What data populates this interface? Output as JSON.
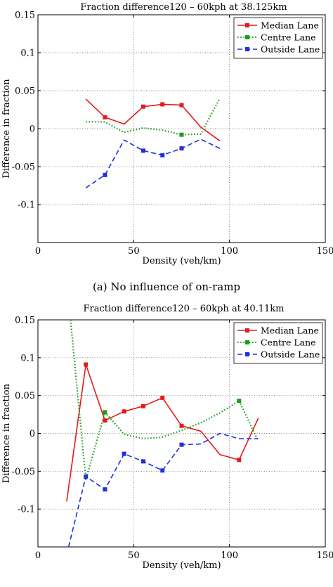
{
  "caption_a": "(a) No influence of on-ramp",
  "chart_data": [
    {
      "type": "line",
      "title": "Fraction difference120 – 60kph at 38.125km",
      "xlabel": "Density (veh/km)",
      "ylabel": "Difference in fraction",
      "xlim": [
        0,
        150
      ],
      "ylim": [
        -0.15,
        0.15
      ],
      "xticks": [
        0,
        50,
        100,
        150
      ],
      "xtick_labels": [
        "0",
        "50",
        "100",
        "150"
      ],
      "yticks": [
        -0.1,
        -0.05,
        0,
        0.05,
        0.1,
        0.15
      ],
      "ytick_labels": [
        "-0.1",
        "-0.05",
        "0",
        "0.05",
        "0.1",
        "0.15"
      ],
      "grid": true,
      "legend_position": "top-right",
      "series": [
        {
          "name": "Median Lane",
          "color": "#e41a1c",
          "style": "solid",
          "x": [
            25,
            35,
            45,
            55,
            65,
            75,
            85,
            95
          ],
          "y": [
            0.039,
            0.015,
            0.006,
            0.029,
            0.032,
            0.031,
            0.002,
            -0.016
          ],
          "markers": [
            [
              35,
              0.015
            ],
            [
              55,
              0.029
            ],
            [
              65,
              0.032
            ],
            [
              75,
              0.031
            ]
          ]
        },
        {
          "name": "Centre Lane",
          "color": "#1a9e1a",
          "style": "dotted",
          "x": [
            25,
            35,
            45,
            55,
            65,
            75,
            85,
            95
          ],
          "y": [
            0.009,
            0.009,
            -0.005,
            0.001,
            -0.002,
            -0.008,
            -0.007,
            0.04
          ],
          "markers": [
            [
              75,
              -0.008
            ]
          ]
        },
        {
          "name": "Outside Lane",
          "color": "#1f2fe0",
          "style": "dashed",
          "x": [
            25,
            35,
            45,
            55,
            65,
            75,
            85,
            95
          ],
          "y": [
            -0.078,
            -0.061,
            -0.015,
            -0.029,
            -0.035,
            -0.026,
            -0.014,
            -0.026
          ],
          "markers": [
            [
              35,
              -0.061
            ],
            [
              55,
              -0.029
            ],
            [
              65,
              -0.035
            ],
            [
              75,
              -0.026
            ]
          ]
        }
      ]
    },
    {
      "type": "line",
      "title": "Fraction difference120 – 60kph at 40.11km",
      "xlabel": "Density (veh/km)",
      "ylabel": "Difference in fraction",
      "xlim": [
        0,
        150
      ],
      "ylim": [
        -0.15,
        0.15
      ],
      "xticks": [
        0,
        50,
        100,
        150
      ],
      "xtick_labels": [
        "0",
        "50",
        "100",
        "150"
      ],
      "yticks": [
        -0.1,
        -0.05,
        0,
        0.05,
        0.1,
        0.15
      ],
      "ytick_labels": [
        "-0.1",
        "-0.05",
        "0",
        "0.05",
        "0.1",
        "0.15"
      ],
      "grid": true,
      "legend_position": "top-right",
      "series": [
        {
          "name": "Median Lane",
          "color": "#e41a1c",
          "style": "solid",
          "x": [
            15,
            25,
            35,
            45,
            55,
            65,
            75,
            85,
            95,
            105,
            115
          ],
          "y": [
            -0.09,
            0.091,
            0.017,
            0.029,
            0.036,
            0.047,
            0.01,
            0.003,
            -0.028,
            -0.035,
            0.02
          ],
          "markers": [
            [
              25,
              0.091
            ],
            [
              35,
              0.017
            ],
            [
              45,
              0.029
            ],
            [
              55,
              0.036
            ],
            [
              65,
              0.047
            ],
            [
              75,
              0.01
            ],
            [
              105,
              -0.035
            ]
          ]
        },
        {
          "name": "Centre Lane",
          "color": "#1a9e1a",
          "style": "dotted",
          "x": [
            17,
            25,
            35,
            45,
            55,
            65,
            75,
            85,
            95,
            105,
            115
          ],
          "y": [
            0.15,
            -0.061,
            0.028,
            -0.001,
            -0.007,
            -0.005,
            0.004,
            0.014,
            0.027,
            0.043,
            -0.01
          ],
          "markers": [
            [
              35,
              0.028
            ],
            [
              105,
              0.043
            ]
          ]
        },
        {
          "name": "Outside Lane",
          "color": "#1f2fe0",
          "style": "dashed",
          "x": [
            16,
            25,
            35,
            45,
            55,
            65,
            75,
            85,
            95,
            105,
            115
          ],
          "y": [
            -0.15,
            -0.057,
            -0.074,
            -0.027,
            -0.037,
            -0.049,
            -0.015,
            -0.014,
            0.0,
            -0.007,
            -0.007
          ],
          "markers": [
            [
              25,
              -0.057
            ],
            [
              35,
              -0.074
            ],
            [
              45,
              -0.027
            ],
            [
              55,
              -0.037
            ],
            [
              65,
              -0.049
            ],
            [
              75,
              -0.015
            ]
          ]
        }
      ]
    }
  ]
}
